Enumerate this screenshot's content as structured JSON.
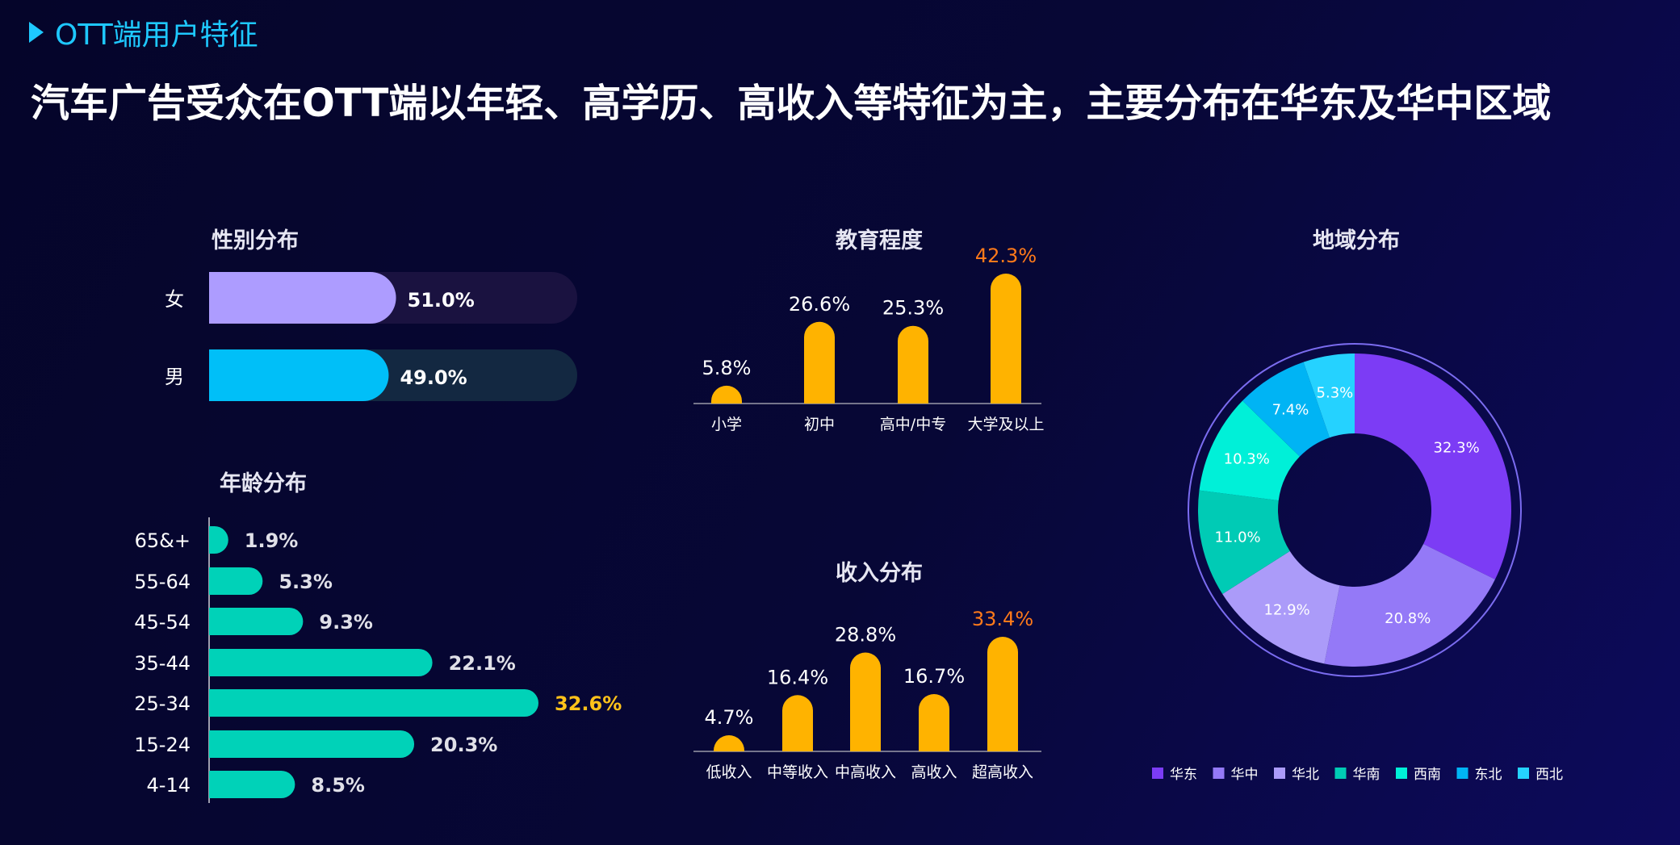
{
  "header": {
    "section_tag": "OTT端用户特征",
    "headline": "汽车广告受众在OTT端以年轻、高学历、高收入等特征为主，主要分布在华东及华中区域"
  },
  "colors": {
    "accent_cyan": "#1ec8ff",
    "bar_yellow": "#ffb300",
    "highlight_orange": "#ff7a1a",
    "highlight_yellow": "#ffc21a",
    "teal": "#00d2b8",
    "female": "#ad9cff",
    "male": "#00bff8"
  },
  "chart_data": [
    {
      "id": "gender",
      "type": "bar",
      "orientation": "horizontal",
      "title": "性别分布",
      "categories": [
        "女",
        "男"
      ],
      "values": [
        51.0,
        49.0
      ],
      "labels": [
        "51.0%",
        "49.0%"
      ],
      "colors": [
        "#ad9cff",
        "#00bff8"
      ],
      "track_colors": [
        "#1a1240",
        "#132841"
      ],
      "xlim": [
        0,
        100
      ]
    },
    {
      "id": "age",
      "type": "bar",
      "orientation": "horizontal",
      "title": "年龄分布",
      "categories": [
        "65&+",
        "55-64",
        "45-54",
        "35-44",
        "25-34",
        "15-24",
        "4-14"
      ],
      "values": [
        1.9,
        5.3,
        9.3,
        22.1,
        32.6,
        20.3,
        8.5
      ],
      "labels": [
        "1.9%",
        "5.3%",
        "9.3%",
        "22.1%",
        "32.6%",
        "20.3%",
        "8.5%"
      ],
      "highlight_index": 4,
      "xlim": [
        0,
        35
      ]
    },
    {
      "id": "education",
      "type": "bar",
      "title": "教育程度",
      "categories": [
        "小学",
        "初中",
        "高中/中专",
        "大学及以上"
      ],
      "values": [
        5.8,
        26.6,
        25.3,
        42.3
      ],
      "labels": [
        "5.8%",
        "26.6%",
        "25.3%",
        "42.3%"
      ],
      "highlight_index": 3,
      "ylim": [
        0,
        45
      ]
    },
    {
      "id": "income",
      "type": "bar",
      "title": "收入分布",
      "categories": [
        "低收入",
        "中等收入",
        "中高收入",
        "高收入",
        "超高收入"
      ],
      "values": [
        4.7,
        16.4,
        28.8,
        16.7,
        33.4
      ],
      "labels": [
        "4.7%",
        "16.4%",
        "28.8%",
        "16.7%",
        "33.4%"
      ],
      "highlight_index": 4,
      "ylim": [
        0,
        35
      ]
    },
    {
      "id": "region",
      "type": "pie",
      "donut": true,
      "title": "地域分布",
      "categories": [
        "华东",
        "华中",
        "华北",
        "华南",
        "西南",
        "东北",
        "西北"
      ],
      "values": [
        32.3,
        20.8,
        12.9,
        11.0,
        10.3,
        7.4,
        5.3
      ],
      "labels": [
        "32.3%",
        "20.8%",
        "12.9%",
        "11.0%",
        "10.3%",
        "7.4%",
        "5.3%"
      ],
      "colors": [
        "#7c3cf5",
        "#9479f7",
        "#ab9bf9",
        "#00cbb5",
        "#00f0d8",
        "#00b4f4",
        "#25d2ff"
      ],
      "legend_position": "bottom"
    }
  ]
}
